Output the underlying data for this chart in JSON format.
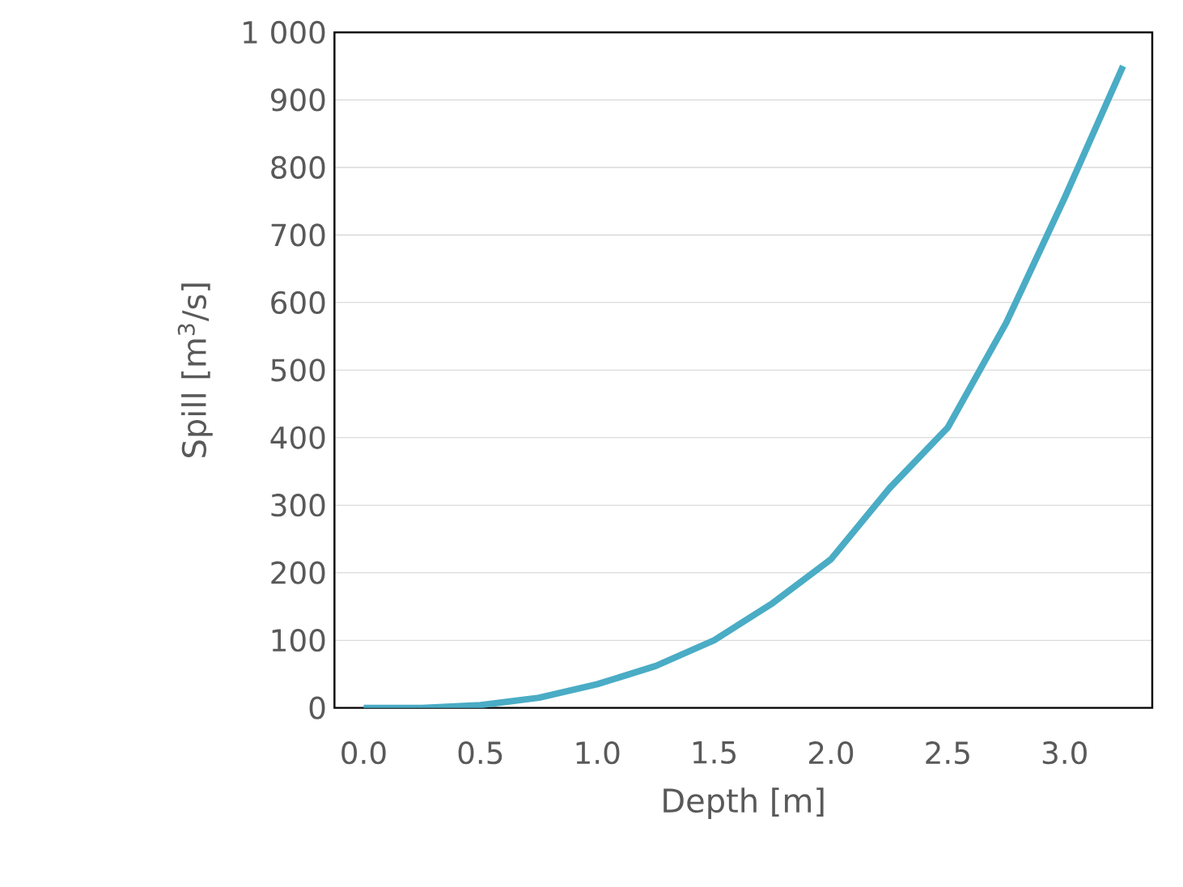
{
  "chart_data": {
    "type": "line",
    "xlabel": "Depth [m]",
    "ylabel": "Spill [m$^{3}$/s]",
    "x": [
      0,
      0.25,
      0.5,
      0.75,
      1.0,
      1.25,
      1.5,
      1.75,
      2.0,
      2.25,
      2.5,
      2.75,
      3.0,
      3.25
    ],
    "series": [
      {
        "color": "#4aacc5",
        "values": [
          0,
          0,
          4,
          15,
          35,
          62,
          100,
          155,
          220,
          325,
          415,
          570,
          755,
          950
        ]
      }
    ],
    "xlim": [
      -0.125,
      3.375
    ],
    "ylim": [
      0,
      1000
    ],
    "xticks": [
      {
        "value": 0,
        "label": "0.0"
      },
      {
        "value": 0.5,
        "label": "0.5"
      },
      {
        "value": 1.0,
        "label": "1.0"
      },
      {
        "value": 1.5,
        "label": "1.5"
      },
      {
        "value": 2.0,
        "label": "2.0"
      },
      {
        "value": 2.5,
        "label": "2.5"
      },
      {
        "value": 3.0,
        "label": "3.0"
      }
    ],
    "yticks": [
      0,
      100,
      200,
      300,
      400,
      500,
      600,
      700,
      800,
      900,
      {
        "value": 1000,
        "label": "1 000"
      }
    ],
    "grid": "y",
    "marker": "none",
    "line_style": "solid"
  }
}
